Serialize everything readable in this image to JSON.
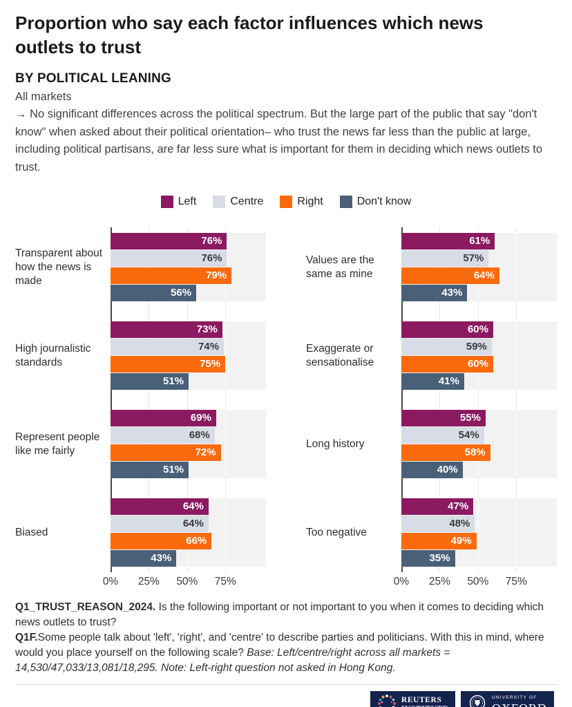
{
  "header": {
    "title": "Proportion who say each factor influences which news outlets to trust",
    "subtitle": "BY POLITICAL LEANING",
    "scope": "All markets",
    "note": "→ No significant differences across the political spectrum. But the large part of the public that say \"don't know\" when asked about their political orientation– who trust the news far less than the public at large, including political partisans, are far less sure what is important for them in deciding which news outlets to trust."
  },
  "legend": {
    "items": [
      {
        "label": "Left",
        "color": "#8b1a61"
      },
      {
        "label": "Centre",
        "color": "#d8dce6"
      },
      {
        "label": "Right",
        "color": "#fb6a0d"
      },
      {
        "label": "Don't know",
        "color": "#4a6078"
      }
    ]
  },
  "chart_data": {
    "type": "bar",
    "orientation": "horizontal",
    "title": "Proportion who say each factor influences which news outlets to trust",
    "subtitle": "BY POLITICAL LEANING",
    "series_names": [
      "Left",
      "Centre",
      "Right",
      "Don't know"
    ],
    "series_colors": [
      "#8b1a61",
      "#d8dce6",
      "#fb6a0d",
      "#4a6078"
    ],
    "value_label_colors": [
      "#ffffff",
      "#3a3a3a",
      "#ffffff",
      "#ffffff"
    ],
    "value_suffix": "%",
    "x_ticks": [
      0,
      25,
      50,
      75
    ],
    "x_tick_labels": [
      "0%",
      "25%",
      "50%",
      "75%"
    ],
    "xlim": [
      0,
      101.5
    ],
    "grid": true,
    "legend_position": "top-center",
    "panels": [
      {
        "categories": [
          "Transparent about how the news is made",
          "High journalistic standards",
          "Represent people like me fairly",
          "Biased"
        ],
        "series": [
          {
            "name": "Left",
            "values": [
              76,
              73,
              69,
              64
            ]
          },
          {
            "name": "Centre",
            "values": [
              76,
              74,
              68,
              64
            ]
          },
          {
            "name": "Right",
            "values": [
              79,
              75,
              72,
              66
            ]
          },
          {
            "name": "Don't know",
            "values": [
              56,
              51,
              51,
              43
            ]
          }
        ]
      },
      {
        "categories": [
          "Values are the same as mine",
          "Exaggerate or sensationalise",
          "Long history",
          "Too negative"
        ],
        "series": [
          {
            "name": "Left",
            "values": [
              61,
              60,
              55,
              47
            ]
          },
          {
            "name": "Centre",
            "values": [
              57,
              59,
              54,
              48
            ]
          },
          {
            "name": "Right",
            "values": [
              64,
              60,
              58,
              49
            ]
          },
          {
            "name": "Don't know",
            "values": [
              43,
              41,
              40,
              35
            ]
          }
        ]
      }
    ]
  },
  "footer": {
    "q1_label": "Q1_TRUST_REASON_2024.",
    "q1_text": " Is the following important or not important to you when it comes to deciding which news outlets to trust?",
    "q1f_label": "Q1F.",
    "q1f_text": "Some people talk about 'left', 'right', and 'centre' to describe parties and politicians. With this in mind, where would you place yourself on the following scale? ",
    "q1f_base": "Base: Left/centre/right across all markets = 14,530/47,033/13,081/18,295. Note: Left-right question not asked in Hong Kong."
  },
  "logos": {
    "badge_color": "#14234e",
    "reuters_line1": "REUTERS",
    "reuters_line2": "INSTITUTE",
    "oxford_line1": "UNIVERSITY OF",
    "oxford_line2": "OXFORD"
  }
}
